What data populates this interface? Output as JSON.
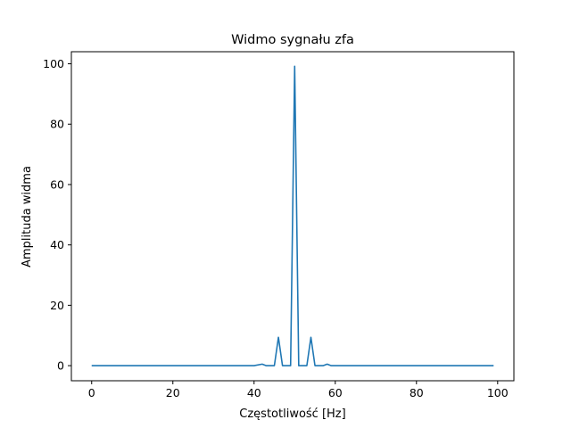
{
  "chart_data": {
    "type": "line",
    "title": "Widmo sygnału zfa",
    "xlabel": "Częstotliwość [Hz]",
    "ylabel": "Amplituda widma",
    "xlim": [
      -5,
      104
    ],
    "ylim": [
      -5,
      104
    ],
    "xticks": [
      0,
      20,
      40,
      60,
      80,
      100
    ],
    "yticks": [
      0,
      20,
      40,
      60,
      80,
      100
    ],
    "grid": false,
    "series": [
      {
        "color": "#1f77b4",
        "x": [
          0,
          40,
          42,
          43,
          44,
          45,
          46,
          47,
          48,
          49,
          50,
          51,
          52,
          53,
          54,
          55,
          56,
          57,
          58,
          59,
          99
        ],
        "y": [
          0,
          0,
          0.5,
          0,
          0,
          0,
          9.4,
          0,
          0,
          0,
          99.2,
          0,
          0,
          0,
          9.4,
          0,
          0,
          0,
          0.5,
          0,
          0
        ]
      }
    ]
  }
}
